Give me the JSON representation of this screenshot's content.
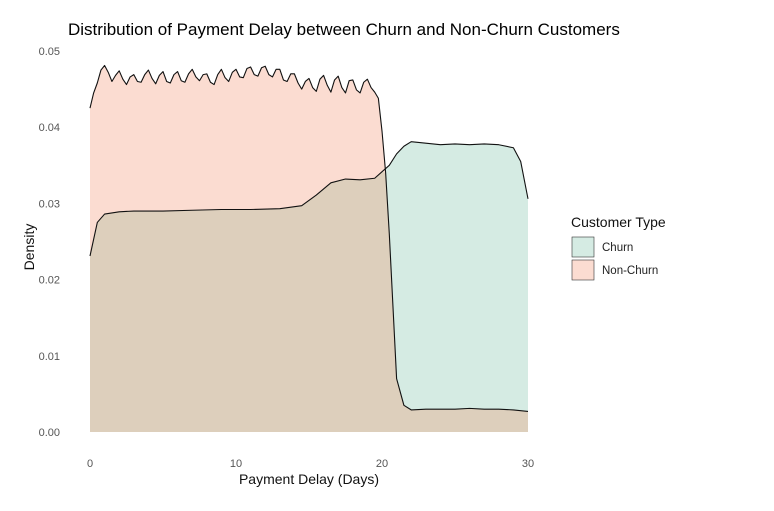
{
  "chart_data": {
    "type": "area",
    "title": "Distribution of Payment Delay between Churn and Non-Churn Customers",
    "xlabel": "Payment Delay (Days)",
    "ylabel": "Density",
    "xlim": [
      0,
      30
    ],
    "ylim": [
      0,
      0.05
    ],
    "x_ticks": [
      "0",
      "10",
      "20",
      "30"
    ],
    "y_ticks": [
      "0.00",
      "0.01",
      "0.02",
      "0.03",
      "0.04",
      "0.05"
    ],
    "grid": false,
    "legend": {
      "title": "Customer Type",
      "position": "right"
    },
    "series": [
      {
        "name": "Churn",
        "color": "#d5ebe3",
        "x": [
          0,
          0.5,
          1,
          2,
          3,
          5,
          7,
          9,
          11,
          13,
          14.5,
          15.5,
          16.5,
          17.5,
          18.5,
          19.5,
          20.5,
          21,
          21.5,
          22,
          23,
          24,
          25,
          26,
          27,
          28,
          29,
          29.5,
          30
        ],
        "y": [
          0.0231,
          0.0275,
          0.0286,
          0.0289,
          0.029,
          0.029,
          0.0291,
          0.0292,
          0.0292,
          0.0293,
          0.0297,
          0.0311,
          0.0327,
          0.0332,
          0.0331,
          0.0333,
          0.035,
          0.0365,
          0.0375,
          0.0381,
          0.0379,
          0.0377,
          0.0378,
          0.0377,
          0.0378,
          0.0377,
          0.0373,
          0.0355,
          0.0306
        ]
      },
      {
        "name": "Non-Churn",
        "color": "#fbdcd1",
        "x": [
          0,
          0.25,
          0.5,
          0.75,
          1,
          1.25,
          1.5,
          1.75,
          2,
          2.25,
          2.5,
          2.75,
          3,
          3.25,
          3.5,
          3.75,
          4,
          4.25,
          4.5,
          4.75,
          5,
          5.25,
          5.5,
          5.75,
          6,
          6.25,
          6.5,
          6.75,
          7,
          7.25,
          7.5,
          7.75,
          8,
          8.25,
          8.5,
          8.75,
          9,
          9.25,
          9.5,
          9.75,
          10,
          10.25,
          10.5,
          10.75,
          11,
          11.25,
          11.5,
          11.75,
          12,
          12.25,
          12.5,
          12.75,
          13,
          13.25,
          13.5,
          13.75,
          14,
          14.25,
          14.5,
          14.75,
          15,
          15.25,
          15.5,
          15.75,
          16,
          16.25,
          16.5,
          16.75,
          17,
          17.25,
          17.5,
          17.75,
          18,
          18.25,
          18.5,
          18.75,
          19,
          19.25,
          19.5,
          19.75,
          20,
          20.25,
          20.5,
          20.75,
          21,
          21.5,
          22,
          23,
          24,
          25,
          26,
          27,
          28,
          29,
          30
        ],
        "y": [
          0.0425,
          0.0445,
          0.0458,
          0.0475,
          0.0481,
          0.0472,
          0.046,
          0.0468,
          0.0474,
          0.0463,
          0.0456,
          0.0466,
          0.0469,
          0.046,
          0.0459,
          0.0469,
          0.0475,
          0.0464,
          0.0457,
          0.0468,
          0.0473,
          0.046,
          0.0458,
          0.0469,
          0.0473,
          0.0461,
          0.0459,
          0.047,
          0.0476,
          0.0466,
          0.0461,
          0.0469,
          0.047,
          0.0459,
          0.0456,
          0.0469,
          0.0476,
          0.0465,
          0.046,
          0.0472,
          0.0476,
          0.0466,
          0.0465,
          0.0477,
          0.0479,
          0.0469,
          0.0467,
          0.0478,
          0.048,
          0.0469,
          0.0466,
          0.0476,
          0.0476,
          0.0462,
          0.046,
          0.047,
          0.047,
          0.0458,
          0.045,
          0.046,
          0.0464,
          0.0452,
          0.0447,
          0.0463,
          0.0468,
          0.0455,
          0.0446,
          0.0462,
          0.0467,
          0.0452,
          0.0445,
          0.0461,
          0.0462,
          0.0449,
          0.0445,
          0.0459,
          0.0463,
          0.0452,
          0.0446,
          0.0438,
          0.0395,
          0.034,
          0.026,
          0.0165,
          0.007,
          0.0035,
          0.0029,
          0.003,
          0.003,
          0.003,
          0.0031,
          0.003,
          0.003,
          0.0029,
          0.0027
        ]
      }
    ],
    "overlap_color": "#ddcfbc"
  }
}
